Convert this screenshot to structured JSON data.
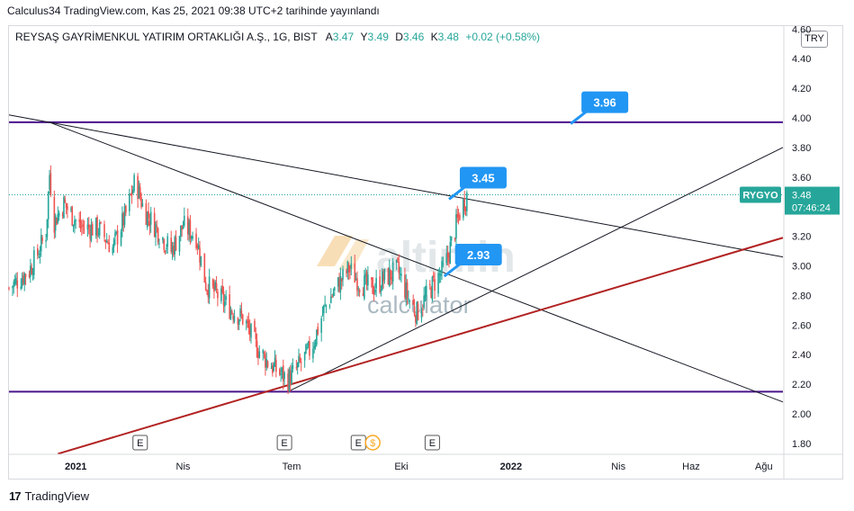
{
  "caption": "Calculus34 TradingView.com, Kas 25, 2021 09:38 UTC+2 tarihinde yayınlandı",
  "legend": {
    "symbol": "REYSAŞ GAYRİMENKUL YATIRIM ORTAKLIĞI A.Ş., 1G, BIST",
    "open_label": "A",
    "open": "3.47",
    "high_label": "Y",
    "high": "3.49",
    "low_label": "D",
    "low": "3.46",
    "close_label": "K",
    "close": "3.48",
    "change": "+0.02 (+0.58%)"
  },
  "currency": "TRY",
  "price_tag": {
    "ticker": "RYGYO",
    "price": "3.48",
    "countdown": "07:46:24"
  },
  "watermark": {
    "brand": "altin.in",
    "sub": "calculator"
  },
  "footer": "TradingView",
  "colors": {
    "up": "#26a69a",
    "down": "#ef5350",
    "trend": "#131722",
    "support": "#b22222",
    "horizontal": "#4a148c",
    "callout": "#2196f3",
    "tag": "#26a69a"
  },
  "chart_data": {
    "type": "candlestick",
    "y_ticks": [
      "4.60",
      "4.40",
      "4.20",
      "4.00",
      "3.80",
      "3.60",
      "3.40",
      "3.20",
      "3.00",
      "2.80",
      "2.60",
      "2.40",
      "2.20",
      "2.00",
      "1.80"
    ],
    "ylim": [
      1.75,
      4.62
    ],
    "x_ticks": [
      "2021",
      "Nis",
      "Tem",
      "Eki",
      "2022",
      "Nis",
      "Haz",
      "Ağu"
    ],
    "x_tick_dates": [
      "2021-01-01",
      "2021-04-01",
      "2021-07-01",
      "2021-10-01",
      "2022-01-01",
      "2022-04-01",
      "2022-06-01",
      "2022-08-01"
    ],
    "xlim": [
      "2020-11-06",
      "2022-08-17"
    ],
    "horizontal_lines": [
      3.97,
      2.15
    ],
    "reference_line": 3.48,
    "trendlines": [
      {
        "kind": "resistance",
        "from": [
          "2020-11-06",
          4.02
        ],
        "to": [
          "2022-08-17",
          3.06
        ]
      },
      {
        "kind": "falling",
        "from": [
          "2020-12-10",
          3.97
        ],
        "to": [
          "2022-08-17",
          2.08
        ]
      },
      {
        "kind": "rising",
        "from": [
          "2021-06-28",
          2.15
        ],
        "to": [
          "2022-08-17",
          3.8
        ]
      },
      {
        "kind": "support",
        "from": [
          "2020-12-17",
          1.73
        ],
        "to": [
          "2022-08-17",
          3.19
        ]
      }
    ],
    "callouts": [
      {
        "label": "3.96",
        "date": "2022-02-20",
        "value": 3.96
      },
      {
        "label": "3.45",
        "date": "2021-11-10",
        "value": 3.45
      },
      {
        "label": "2.93",
        "date": "2021-11-06",
        "value": 2.93
      }
    ],
    "earnings_markers": [
      "2021-02-24",
      "2021-06-25",
      "2021-08-26",
      "2021-10-27"
    ],
    "dividend_markers": [
      "2021-09-07"
    ],
    "price_path": [
      [
        "2020-11-06",
        2.85
      ],
      [
        "2020-11-23",
        2.97
      ],
      [
        "2020-11-30",
        3.08
      ],
      [
        "2020-12-07",
        3.22
      ],
      [
        "2020-12-10",
        3.62
      ],
      [
        "2020-12-14",
        3.3
      ],
      [
        "2020-12-22",
        3.42
      ],
      [
        "2021-01-05",
        3.26
      ],
      [
        "2021-01-20",
        3.25
      ],
      [
        "2021-02-01",
        3.12
      ],
      [
        "2021-02-12",
        3.35
      ],
      [
        "2021-02-20",
        3.58
      ],
      [
        "2021-02-27",
        3.38
      ],
      [
        "2021-03-10",
        3.25
      ],
      [
        "2021-03-22",
        3.1
      ],
      [
        "2021-04-01",
        3.27
      ],
      [
        "2021-04-12",
        3.2
      ],
      [
        "2021-04-20",
        2.88
      ],
      [
        "2021-04-30",
        2.8
      ],
      [
        "2021-05-12",
        2.7
      ],
      [
        "2021-05-22",
        2.64
      ],
      [
        "2021-06-01",
        2.46
      ],
      [
        "2021-06-12",
        2.34
      ],
      [
        "2021-06-22",
        2.27
      ],
      [
        "2021-06-28",
        2.23
      ],
      [
        "2021-07-05",
        2.3
      ],
      [
        "2021-07-18",
        2.45
      ],
      [
        "2021-07-28",
        2.7
      ],
      [
        "2021-08-05",
        2.82
      ],
      [
        "2021-08-18",
        2.98
      ],
      [
        "2021-08-28",
        2.88
      ],
      [
        "2021-09-07",
        2.85
      ],
      [
        "2021-09-18",
        2.92
      ],
      [
        "2021-09-28",
        2.97
      ],
      [
        "2021-10-07",
        2.78
      ],
      [
        "2021-10-14",
        2.68
      ],
      [
        "2021-10-21",
        2.78
      ],
      [
        "2021-10-28",
        2.88
      ],
      [
        "2021-11-06",
        2.98
      ],
      [
        "2021-11-12",
        3.15
      ],
      [
        "2021-11-19",
        3.36
      ],
      [
        "2021-11-25",
        3.48
      ]
    ]
  }
}
